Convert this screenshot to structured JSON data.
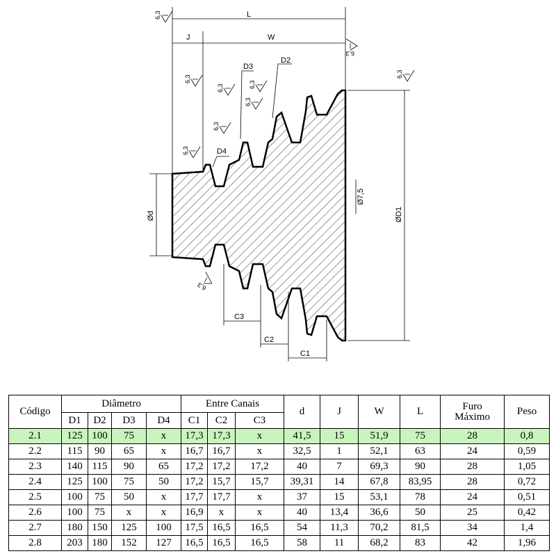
{
  "drawing": {
    "labels": {
      "L": "L",
      "J": "J",
      "W": "W",
      "D1": "ØD1",
      "D2": "D2",
      "D3": "D3",
      "D4": "D4",
      "d": "Ød",
      "bore": "Ø7,5",
      "C1": "C1",
      "C2": "C2",
      "C3": "C3"
    },
    "roughness": [
      "6,3",
      "6,3",
      "6,3",
      "6,3",
      "6,3",
      "6,3",
      "6,3",
      "6,3",
      "6,3",
      "6,3"
    ]
  },
  "table": {
    "header": {
      "codigo": "Código",
      "diametro": "Diâmetro",
      "entre_canais": "Entre Canais",
      "d": "d",
      "j": "J",
      "w": "W",
      "l": "L",
      "furo": "Furo Máximo",
      "peso": "Peso",
      "sub": [
        "D1",
        "D2",
        "D3",
        "D4",
        "C1",
        "C2",
        "C3"
      ]
    },
    "rows": [
      [
        "2.1",
        "125",
        "100",
        "75",
        "x",
        "17,3",
        "17,3",
        "x",
        "41,5",
        "15",
        "51,9",
        "75",
        "28",
        "0,8"
      ],
      [
        "2.2",
        "115",
        "90",
        "65",
        "x",
        "16,7",
        "16,7",
        "x",
        "32,5",
        "1",
        "52,1",
        "63",
        "24",
        "0,59"
      ],
      [
        "2.3",
        "140",
        "115",
        "90",
        "65",
        "17,2",
        "17,2",
        "17,2",
        "40",
        "7",
        "69,3",
        "90",
        "28",
        "1,05"
      ],
      [
        "2.4",
        "125",
        "100",
        "75",
        "50",
        "17,2",
        "15,7",
        "15,7",
        "39,31",
        "14",
        "67,8",
        "83,95",
        "28",
        "0,72"
      ],
      [
        "2.5",
        "100",
        "75",
        "50",
        "x",
        "17,7",
        "17,7",
        "x",
        "37",
        "15",
        "53,1",
        "78",
        "24",
        "0,51"
      ],
      [
        "2.6",
        "100",
        "75",
        "x",
        "x",
        "16,9",
        "x",
        "x",
        "40",
        "13,4",
        "36,6",
        "50",
        "25",
        "0,42"
      ],
      [
        "2.7",
        "180",
        "150",
        "125",
        "100",
        "17,5",
        "16,5",
        "16,5",
        "54",
        "11,3",
        "70,2",
        "81,5",
        "34",
        "1,4"
      ],
      [
        "2.8",
        "203",
        "180",
        "152",
        "127",
        "16,5",
        "16,5",
        "16,5",
        "58",
        "11",
        "68,2",
        "83",
        "42",
        "1,96"
      ]
    ]
  }
}
